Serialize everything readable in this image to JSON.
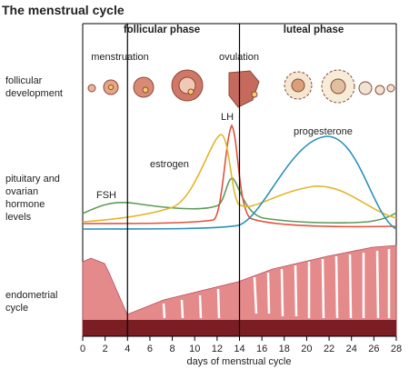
{
  "title": "The menstrual cycle",
  "phases": [
    "follicular phase",
    "luteal phase"
  ],
  "row_labels": {
    "follicular": [
      "follicular",
      "development"
    ],
    "hormones": [
      "pituitary and",
      "ovarian",
      "hormone",
      "levels"
    ],
    "endometrium": [
      "endometrial",
      "cycle"
    ]
  },
  "annotations": {
    "menstruation": "menstruation",
    "ovulation": "ovulation",
    "lh": "LH",
    "estrogen": "estrogen",
    "progesterone": "progesterone",
    "fsh": "FSH"
  },
  "x_axis": {
    "label": "days of menstrual cycle",
    "xlim": [
      0,
      28
    ],
    "xticks": [
      0,
      2,
      4,
      6,
      8,
      10,
      12,
      14,
      16,
      18,
      20,
      22,
      24,
      26,
      28
    ],
    "dividers": [
      4,
      14
    ]
  }
}
